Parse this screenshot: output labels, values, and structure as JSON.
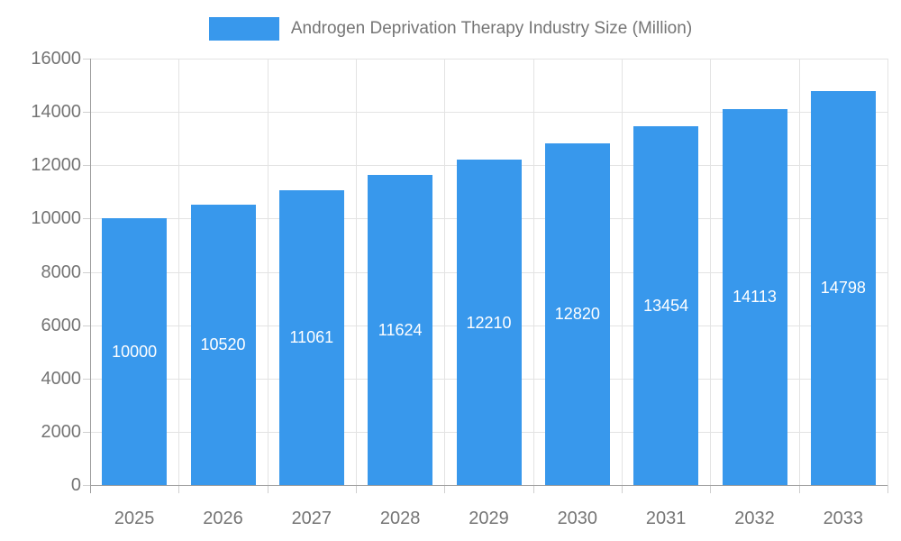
{
  "legend": {
    "label": "Androgen Deprivation Therapy Industry Size (Million)"
  },
  "chart_data": {
    "type": "bar",
    "title": "Androgen Deprivation Therapy Industry Size (Million)",
    "categories": [
      "2025",
      "2026",
      "2027",
      "2028",
      "2029",
      "2030",
      "2031",
      "2032",
      "2033"
    ],
    "values": [
      10000,
      10520,
      11061,
      11624,
      12210,
      12820,
      13454,
      14113,
      14798
    ],
    "bar_labels": [
      "10000",
      "10520",
      "11061",
      "11624",
      "12210",
      "12820",
      "13454",
      "14113",
      "14798"
    ],
    "xlabel": "",
    "ylabel": "",
    "ylim": [
      0,
      16000
    ],
    "yticks": [
      0,
      2000,
      4000,
      6000,
      8000,
      10000,
      12000,
      14000,
      16000
    ],
    "grid": true,
    "legend_position": "top",
    "bar_label_position": "center",
    "colors": {
      "bar": "#3898EC",
      "bar_label": "#ffffff",
      "axis_line": "#9E9E9E",
      "gridline": "#E3E3E3",
      "minor_tick": "#CFCFCF",
      "text": "#757575"
    }
  }
}
